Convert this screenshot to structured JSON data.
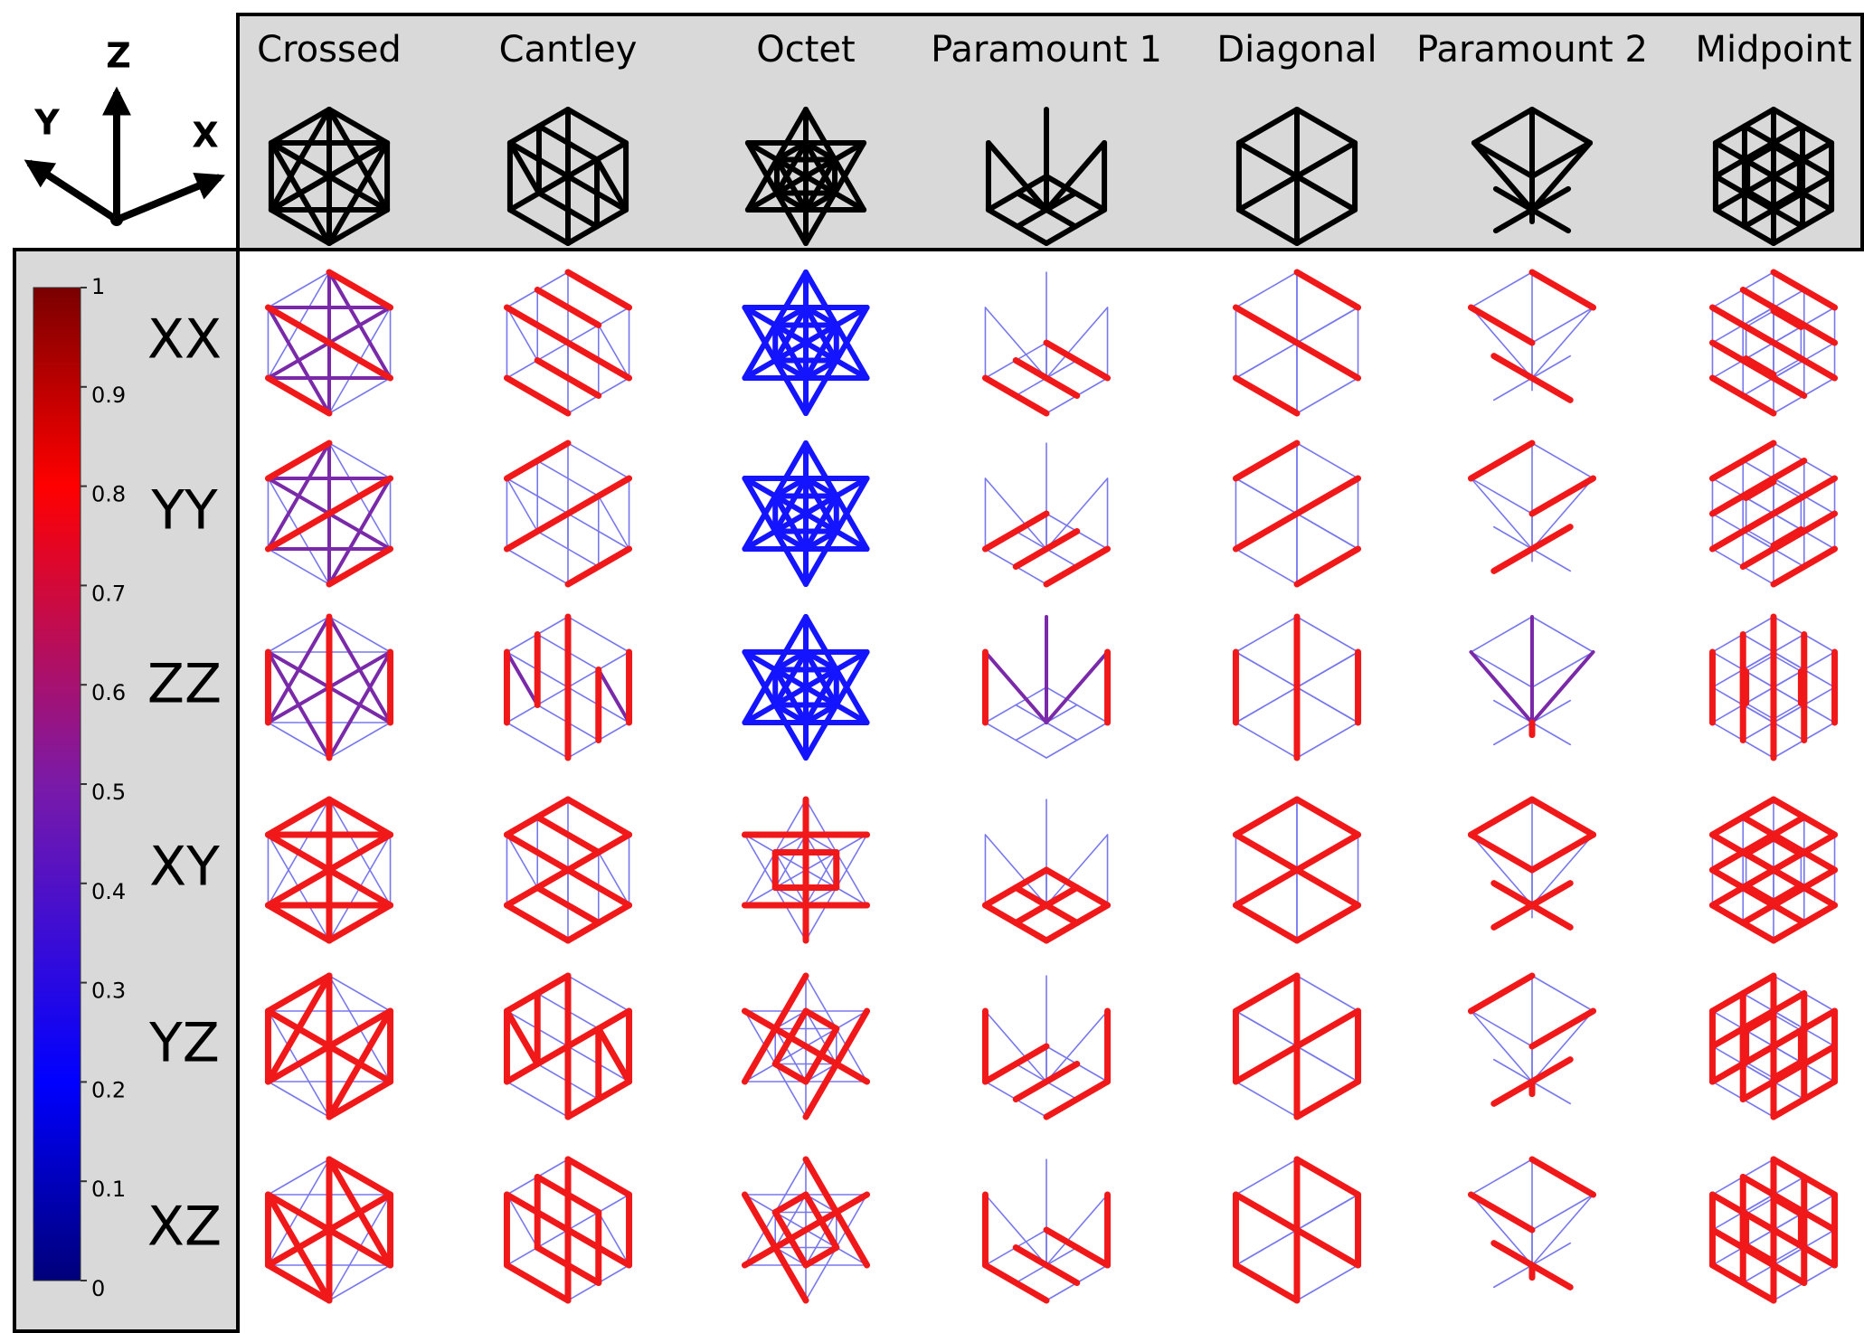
{
  "axes": {
    "z": "Z",
    "y": "Y",
    "x": "X"
  },
  "columns": [
    "Crossed",
    "Cantley",
    "Octet",
    "Paramount 1",
    "Diagonal",
    "Paramount 2",
    "Midpoint"
  ],
  "rows": [
    "XX",
    "YY",
    "ZZ",
    "XY",
    "YZ",
    "XZ"
  ],
  "colorbar": {
    "ticks": [
      1,
      0.9,
      0.8,
      0.7,
      0.6,
      0.5,
      0.4,
      0.3,
      0.2,
      0.1,
      0
    ]
  }
}
